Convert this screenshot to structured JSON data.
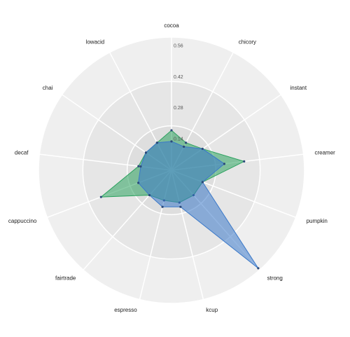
{
  "chart_data": {
    "type": "radar",
    "categories": [
      "cocoa",
      "chicory",
      "instant",
      "creamer",
      "pumpkin",
      "strong",
      "kcup",
      "espresso",
      "fairtrade",
      "cappuccino",
      "decaf",
      "chai",
      "lowacid"
    ],
    "series": [
      {
        "color": "#2ca25f",
        "values": [
          0.18,
          0.14,
          0.17,
          0.33,
          0.15,
          0.15,
          0.15,
          0.14,
          0.15,
          0.34,
          0.15,
          0.14,
          0.14
        ]
      },
      {
        "color": "#3a78c9",
        "values": [
          0.13,
          0.12,
          0.17,
          0.24,
          0.15,
          0.59,
          0.17,
          0.17,
          0.15,
          0.16,
          0.14,
          0.14,
          0.14
        ]
      }
    ],
    "ylim": [
      0,
      0.6
    ],
    "yticks": [
      0.14,
      0.28,
      0.42,
      0.56
    ],
    "grid": true
  }
}
